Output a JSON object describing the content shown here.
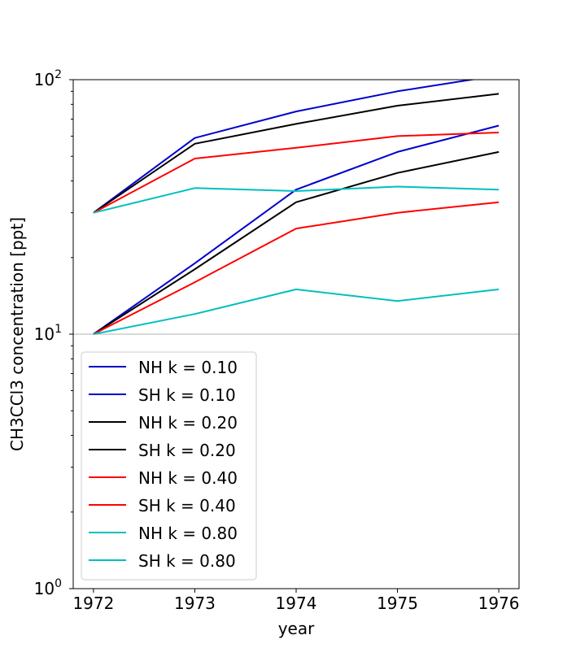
{
  "chart_data": {
    "type": "line",
    "title": "",
    "xlabel": "year",
    "ylabel": "CH3CCl3 concentration [ppt]",
    "yscale": "log",
    "xlim": [
      1971.8,
      1976.2
    ],
    "ylim": [
      1,
      100
    ],
    "x_ticks": [
      "1972",
      "1973",
      "1974",
      "1975",
      "1976"
    ],
    "y_ticks": [
      {
        "value": 1,
        "base": "10",
        "exp": "0"
      },
      {
        "value": 10,
        "base": "10",
        "exp": "1"
      },
      {
        "value": 100,
        "base": "10",
        "exp": "2"
      }
    ],
    "x": [
      1972,
      1973,
      1974,
      1975,
      1976
    ],
    "grid": "horizontal major lines only",
    "legend_position": "lower-left",
    "series": [
      {
        "name": "NH k = 0.10",
        "color": "#0000cc",
        "values": [
          30,
          59,
          75,
          90,
          104
        ]
      },
      {
        "name": "SH k = 0.10",
        "color": "#0000cc",
        "values": [
          10,
          19,
          37,
          52,
          66
        ]
      },
      {
        "name": "NH k = 0.20",
        "color": "#000000",
        "values": [
          30,
          56,
          67,
          79,
          88
        ]
      },
      {
        "name": "SH k = 0.20",
        "color": "#000000",
        "values": [
          10,
          18,
          33,
          43,
          52
        ]
      },
      {
        "name": "NH k = 0.40",
        "color": "#ff0000",
        "values": [
          30,
          49,
          54,
          60,
          62
        ]
      },
      {
        "name": "SH k = 0.40",
        "color": "#ff0000",
        "values": [
          10,
          16,
          26,
          30,
          33
        ]
      },
      {
        "name": "NH k = 0.80",
        "color": "#00bfbf",
        "values": [
          30,
          37.5,
          36.5,
          38,
          37
        ]
      },
      {
        "name": "SH k = 0.80",
        "color": "#00bfbf",
        "values": [
          10,
          12,
          15,
          13.5,
          15
        ]
      }
    ]
  }
}
